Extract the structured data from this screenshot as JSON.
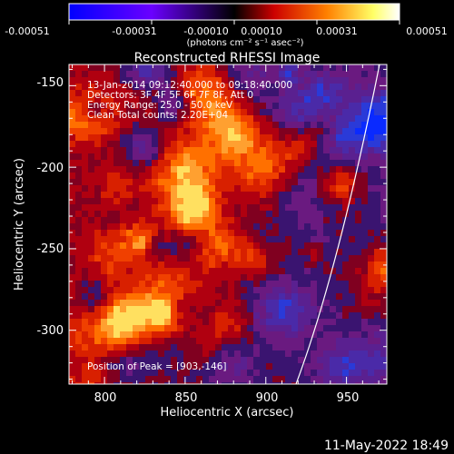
{
  "title": "Reconstructed RHESSI Image",
  "colorbar": {
    "ticks": [
      "-0.00051",
      "-0.00031",
      "-0.00010",
      "0.00010",
      "0.00031",
      "0.00051"
    ],
    "units": "(photons cm⁻² s⁻¹ asec⁻²)",
    "colors": [
      "#0000ff",
      "#6a00ff",
      "#000000",
      "#cc0000",
      "#ff8000",
      "#ffff66",
      "#ffffff"
    ]
  },
  "axes": {
    "xlabel": "Heliocentric X (arcsec)",
    "ylabel": "Heliocentric Y (arcsec)",
    "xticks": [
      "800",
      "850",
      "900",
      "950"
    ],
    "yticks": [
      "-150",
      "-200",
      "-250",
      "-300"
    ]
  },
  "overlay": {
    "line1": "13-Jan-2014 09:12:40.000 to 09:18:40.000",
    "line2": "Detectors: 3F 4F 5F 6F 7F 8F, Att 0",
    "line3": "Energy Range: 25.0 - 50.0 keV",
    "line4": "Clean     Total counts: 2.20E+04",
    "peak": "Position of Peak = [903,-146]"
  },
  "timestamp": "11-May-2022 18:49"
}
